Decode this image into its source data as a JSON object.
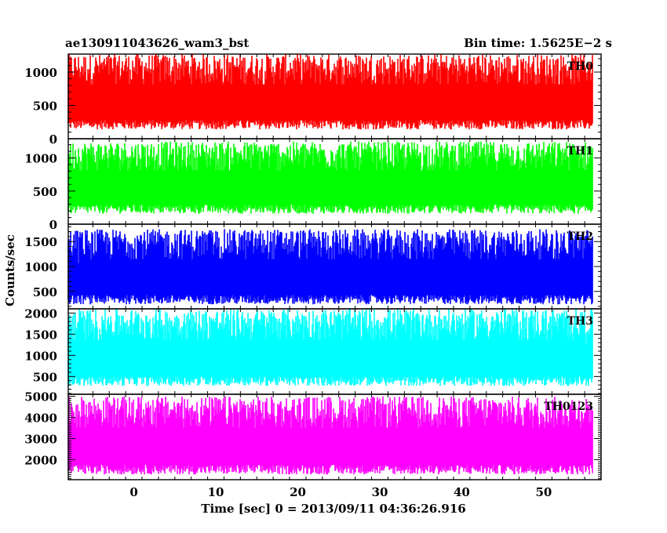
{
  "chart_data": {
    "type": "line",
    "title_left": "ae130911043626_wam3_bst",
    "title_right": "Bin time: 1.5625E−2 s",
    "xlabel": "Time [sec] 0 = 2013/09/11 04:36:26.916",
    "ylabel": "Counts/sec",
    "xlim": [
      -8,
      57
    ],
    "x_ticks": [
      0,
      10,
      20,
      30,
      40,
      50
    ],
    "data_range": [
      -8,
      56
    ],
    "bin_time": 0.015625,
    "panels": [
      {
        "name": "TH0",
        "color": "#ff0000",
        "ylim": [
          0,
          1270
        ],
        "y_ticks": [
          0,
          500,
          1000
        ],
        "mean_range": [
          80,
          1270
        ]
      },
      {
        "name": "TH1",
        "color": "#00ff00",
        "ylim": [
          0,
          1290
        ],
        "y_ticks": [
          0,
          500,
          1000
        ],
        "mean_range": [
          100,
          1250
        ]
      },
      {
        "name": "TH2",
        "color": "#0000ff",
        "ylim": [
          150,
          1850
        ],
        "y_ticks": [
          500,
          1000,
          1500
        ],
        "mean_range": [
          160,
          1750
        ]
      },
      {
        "name": "TH3",
        "color": "#00ffff",
        "ylim": [
          80,
          2100
        ],
        "y_ticks": [
          500,
          1000,
          1500,
          2000
        ],
        "mean_range": [
          180,
          2100
        ]
      },
      {
        "name": "TH0123",
        "color": "#ff00ff",
        "ylim": [
          1050,
          5100
        ],
        "y_ticks": [
          2000,
          3000,
          4000,
          5000
        ],
        "mean_range": [
          1100,
          5000
        ]
      }
    ]
  }
}
